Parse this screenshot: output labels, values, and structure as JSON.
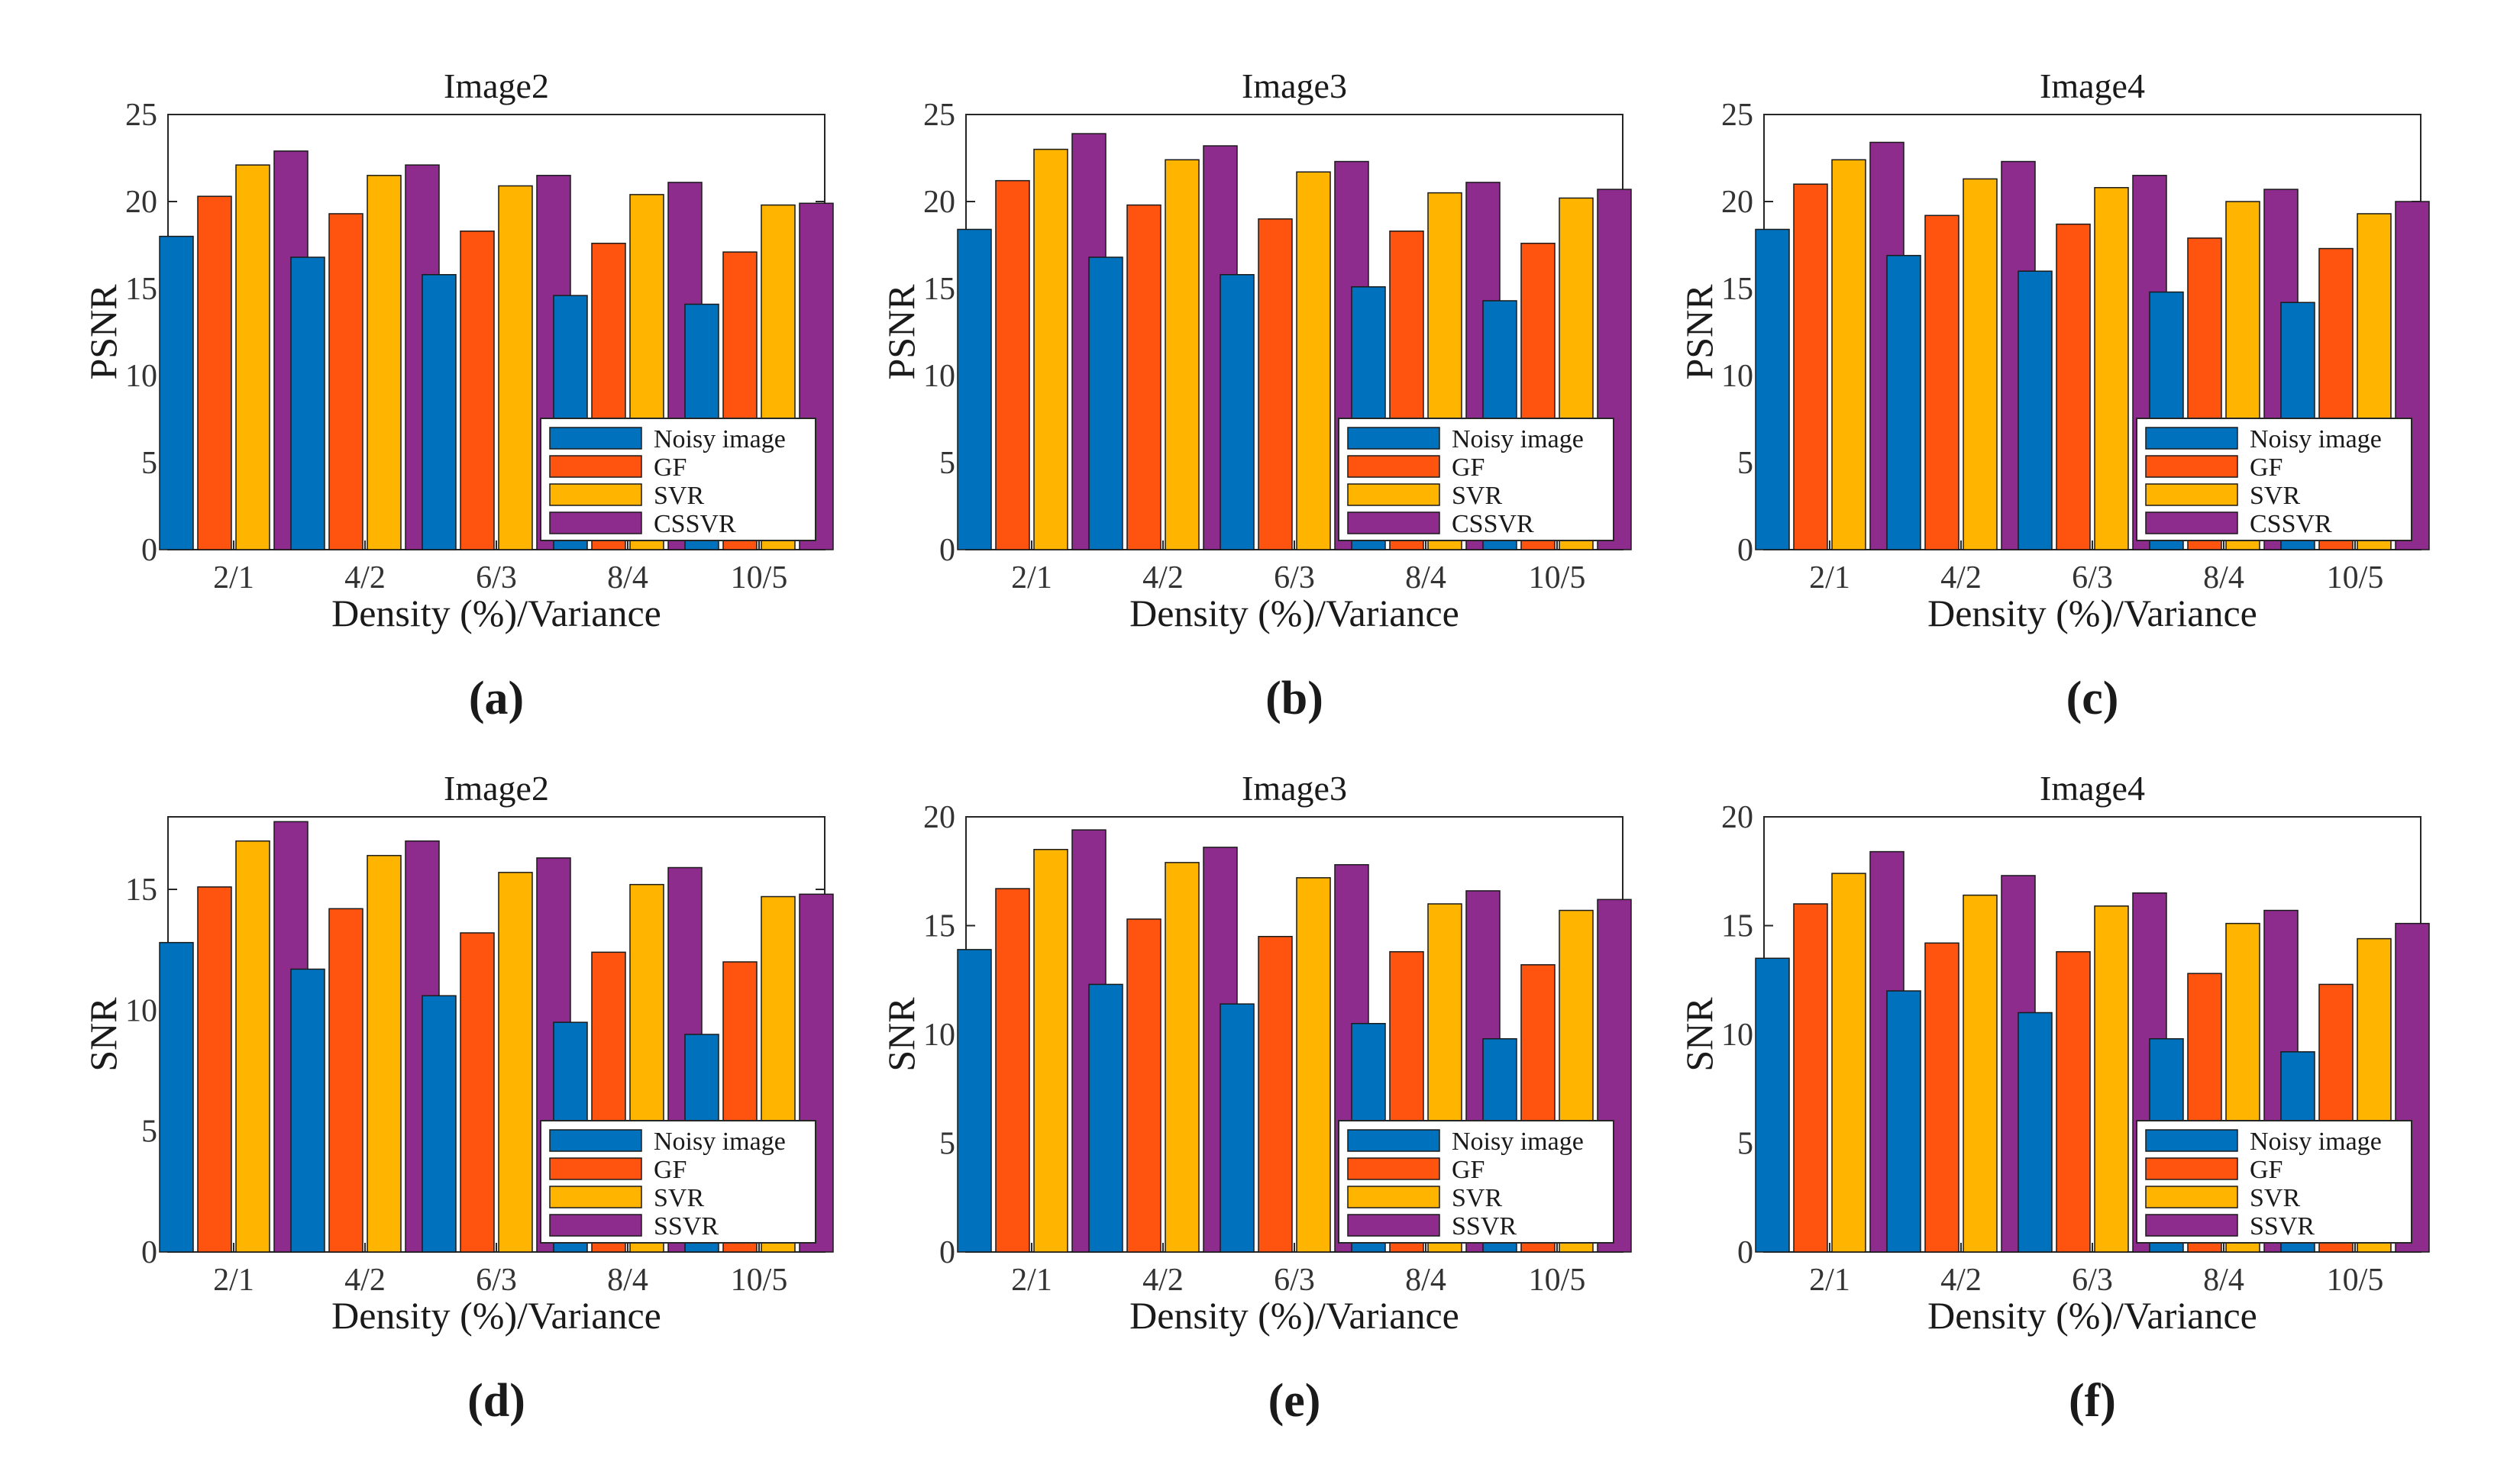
{
  "chart_data": [
    {
      "panel_label": "(a)",
      "type": "bar",
      "title": "Image2",
      "xlabel": "Density (%)/Variance",
      "ylabel": "PSNR",
      "ylim": [
        0,
        25
      ],
      "yticks": [
        0,
        5,
        10,
        15,
        20,
        25
      ],
      "categories": [
        "2/1",
        "4/2",
        "6/3",
        "8/4",
        "10/5"
      ],
      "legend_position": "bottom-right",
      "series": [
        {
          "name": "Noisy image",
          "color": "#0072BD",
          "values": [
            18.0,
            16.8,
            15.8,
            14.6,
            14.1
          ]
        },
        {
          "name": "GF",
          "color": "#FF5410",
          "values": [
            20.3,
            19.3,
            18.3,
            17.6,
            17.1
          ]
        },
        {
          "name": "SVR",
          "color": "#FFB400",
          "values": [
            22.1,
            21.5,
            20.9,
            20.4,
            19.8
          ]
        },
        {
          "name": "CSSVR",
          "color": "#8E2C8E",
          "values": [
            22.9,
            22.1,
            21.5,
            21.1,
            19.9
          ]
        }
      ]
    },
    {
      "panel_label": "(b)",
      "type": "bar",
      "title": "Image3",
      "xlabel": "Density (%)/Variance",
      "ylabel": "PSNR",
      "ylim": [
        0,
        25
      ],
      "yticks": [
        0,
        5,
        10,
        15,
        20,
        25
      ],
      "categories": [
        "2/1",
        "4/2",
        "6/3",
        "8/4",
        "10/5"
      ],
      "legend_position": "bottom-right",
      "series": [
        {
          "name": "Noisy image",
          "color": "#0072BD",
          "values": [
            18.4,
            16.8,
            15.8,
            15.1,
            14.3
          ]
        },
        {
          "name": "GF",
          "color": "#FF5410",
          "values": [
            21.2,
            19.8,
            19.0,
            18.3,
            17.6
          ]
        },
        {
          "name": "SVR",
          "color": "#FFB400",
          "values": [
            23.0,
            22.4,
            21.7,
            20.5,
            20.2
          ]
        },
        {
          "name": "CSSVR",
          "color": "#8E2C8E",
          "values": [
            23.9,
            23.2,
            22.3,
            21.1,
            20.7
          ]
        }
      ]
    },
    {
      "panel_label": "(c)",
      "type": "bar",
      "title": "Image4",
      "xlabel": "Density (%)/Variance",
      "ylabel": "PSNR",
      "ylim": [
        0,
        25
      ],
      "yticks": [
        0,
        5,
        10,
        15,
        20,
        25
      ],
      "categories": [
        "2/1",
        "4/2",
        "6/3",
        "8/4",
        "10/5"
      ],
      "legend_position": "bottom-right",
      "series": [
        {
          "name": "Noisy image",
          "color": "#0072BD",
          "values": [
            18.4,
            16.9,
            16.0,
            14.8,
            14.2
          ]
        },
        {
          "name": "GF",
          "color": "#FF5410",
          "values": [
            21.0,
            19.2,
            18.7,
            17.9,
            17.3
          ]
        },
        {
          "name": "SVR",
          "color": "#FFB400",
          "values": [
            22.4,
            21.3,
            20.8,
            20.0,
            19.3
          ]
        },
        {
          "name": "CSSVR",
          "color": "#8E2C8E",
          "values": [
            23.4,
            22.3,
            21.5,
            20.7,
            20.0
          ]
        }
      ]
    },
    {
      "panel_label": "(d)",
      "type": "bar",
      "title": "Image2",
      "xlabel": "Density (%)/Variance",
      "ylabel": "SNR",
      "ylim": [
        0,
        18
      ],
      "yticks": [
        0,
        5,
        10,
        15
      ],
      "categories": [
        "2/1",
        "4/2",
        "6/3",
        "8/4",
        "10/5"
      ],
      "legend_position": "bottom-right",
      "series": [
        {
          "name": "Noisy image",
          "color": "#0072BD",
          "values": [
            12.8,
            11.7,
            10.6,
            9.5,
            9.0
          ]
        },
        {
          "name": "GF",
          "color": "#FF5410",
          "values": [
            15.1,
            14.2,
            13.2,
            12.4,
            12.0
          ]
        },
        {
          "name": "SVR",
          "color": "#FFB400",
          "values": [
            17.0,
            16.4,
            15.7,
            15.2,
            14.7
          ]
        },
        {
          "name": "SSVR",
          "color": "#8E2C8E",
          "values": [
            17.8,
            17.0,
            16.3,
            15.9,
            14.8
          ]
        }
      ]
    },
    {
      "panel_label": "(e)",
      "type": "bar",
      "title": "Image3",
      "xlabel": "Density (%)/Variance",
      "ylabel": "SNR",
      "ylim": [
        0,
        20
      ],
      "yticks": [
        0,
        5,
        10,
        15,
        20
      ],
      "categories": [
        "2/1",
        "4/2",
        "6/3",
        "8/4",
        "10/5"
      ],
      "legend_position": "bottom-right",
      "series": [
        {
          "name": "Noisy image",
          "color": "#0072BD",
          "values": [
            13.9,
            12.3,
            11.4,
            10.5,
            9.8
          ]
        },
        {
          "name": "GF",
          "color": "#FF5410",
          "values": [
            16.7,
            15.3,
            14.5,
            13.8,
            13.2
          ]
        },
        {
          "name": "SVR",
          "color": "#FFB400",
          "values": [
            18.5,
            17.9,
            17.2,
            16.0,
            15.7
          ]
        },
        {
          "name": "SSVR",
          "color": "#8E2C8E",
          "values": [
            19.4,
            18.6,
            17.8,
            16.6,
            16.2
          ]
        }
      ]
    },
    {
      "panel_label": "(f)",
      "type": "bar",
      "title": "Image4",
      "xlabel": "Density (%)/Variance",
      "ylabel": "SNR",
      "ylim": [
        0,
        20
      ],
      "yticks": [
        0,
        5,
        10,
        15,
        20
      ],
      "categories": [
        "2/1",
        "4/2",
        "6/3",
        "8/4",
        "10/5"
      ],
      "legend_position": "bottom-right",
      "series": [
        {
          "name": "Noisy image",
          "color": "#0072BD",
          "values": [
            13.5,
            12.0,
            11.0,
            9.8,
            9.2
          ]
        },
        {
          "name": "GF",
          "color": "#FF5410",
          "values": [
            16.0,
            14.2,
            13.8,
            12.8,
            12.3
          ]
        },
        {
          "name": "SVR",
          "color": "#FFB400",
          "values": [
            17.4,
            16.4,
            15.9,
            15.1,
            14.4
          ]
        },
        {
          "name": "SSVR",
          "color": "#8E2C8E",
          "values": [
            18.4,
            17.3,
            16.5,
            15.7,
            15.1
          ]
        }
      ]
    }
  ]
}
